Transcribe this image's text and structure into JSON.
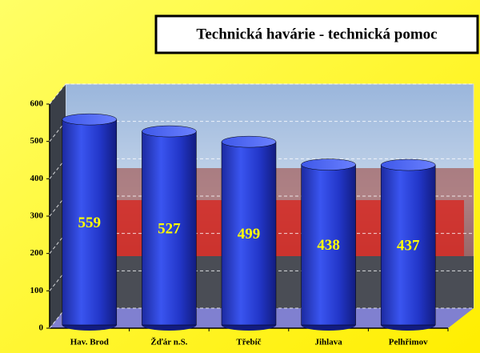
{
  "chart_data": {
    "type": "bar",
    "title": "Technická havárie - technická pomoc",
    "categories": [
      "Hav. Brod",
      "Žďár n.S.",
      "Třebíč",
      "Jihlava",
      "Pelhřimov"
    ],
    "values": [
      559,
      527,
      499,
      438,
      437
    ],
    "color": "#2a3fd6",
    "ylim": [
      0,
      600
    ],
    "yticks": [
      0,
      100,
      200,
      300,
      400,
      500,
      600
    ],
    "grid": true
  }
}
